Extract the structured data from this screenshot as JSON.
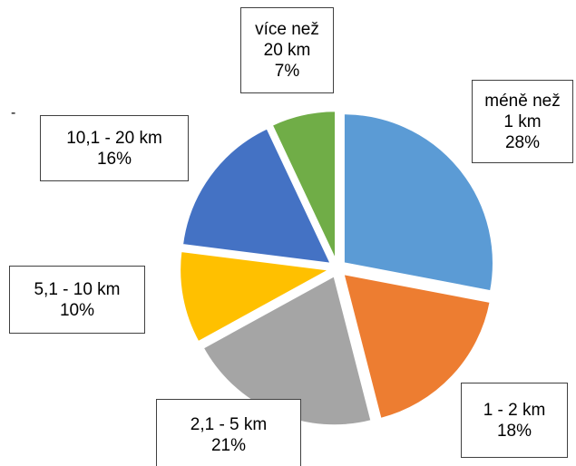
{
  "chart_data": {
    "type": "pie",
    "categories": [
      "méně než 1 km",
      "1 - 2 km",
      "2,1 - 5 km",
      "5,1 - 10 km",
      "10,1 - 20 km",
      "více než 20 km"
    ],
    "values": [
      28,
      18,
      21,
      10,
      16,
      7
    ],
    "value_labels": [
      "28%",
      "18%",
      "21%",
      "10%",
      "16%",
      "7%"
    ],
    "colors": [
      "#5b9bd5",
      "#ed7d31",
      "#a5a5a5",
      "#ffc000",
      "#4472c4",
      "#70ad47"
    ],
    "annotation": "-"
  }
}
